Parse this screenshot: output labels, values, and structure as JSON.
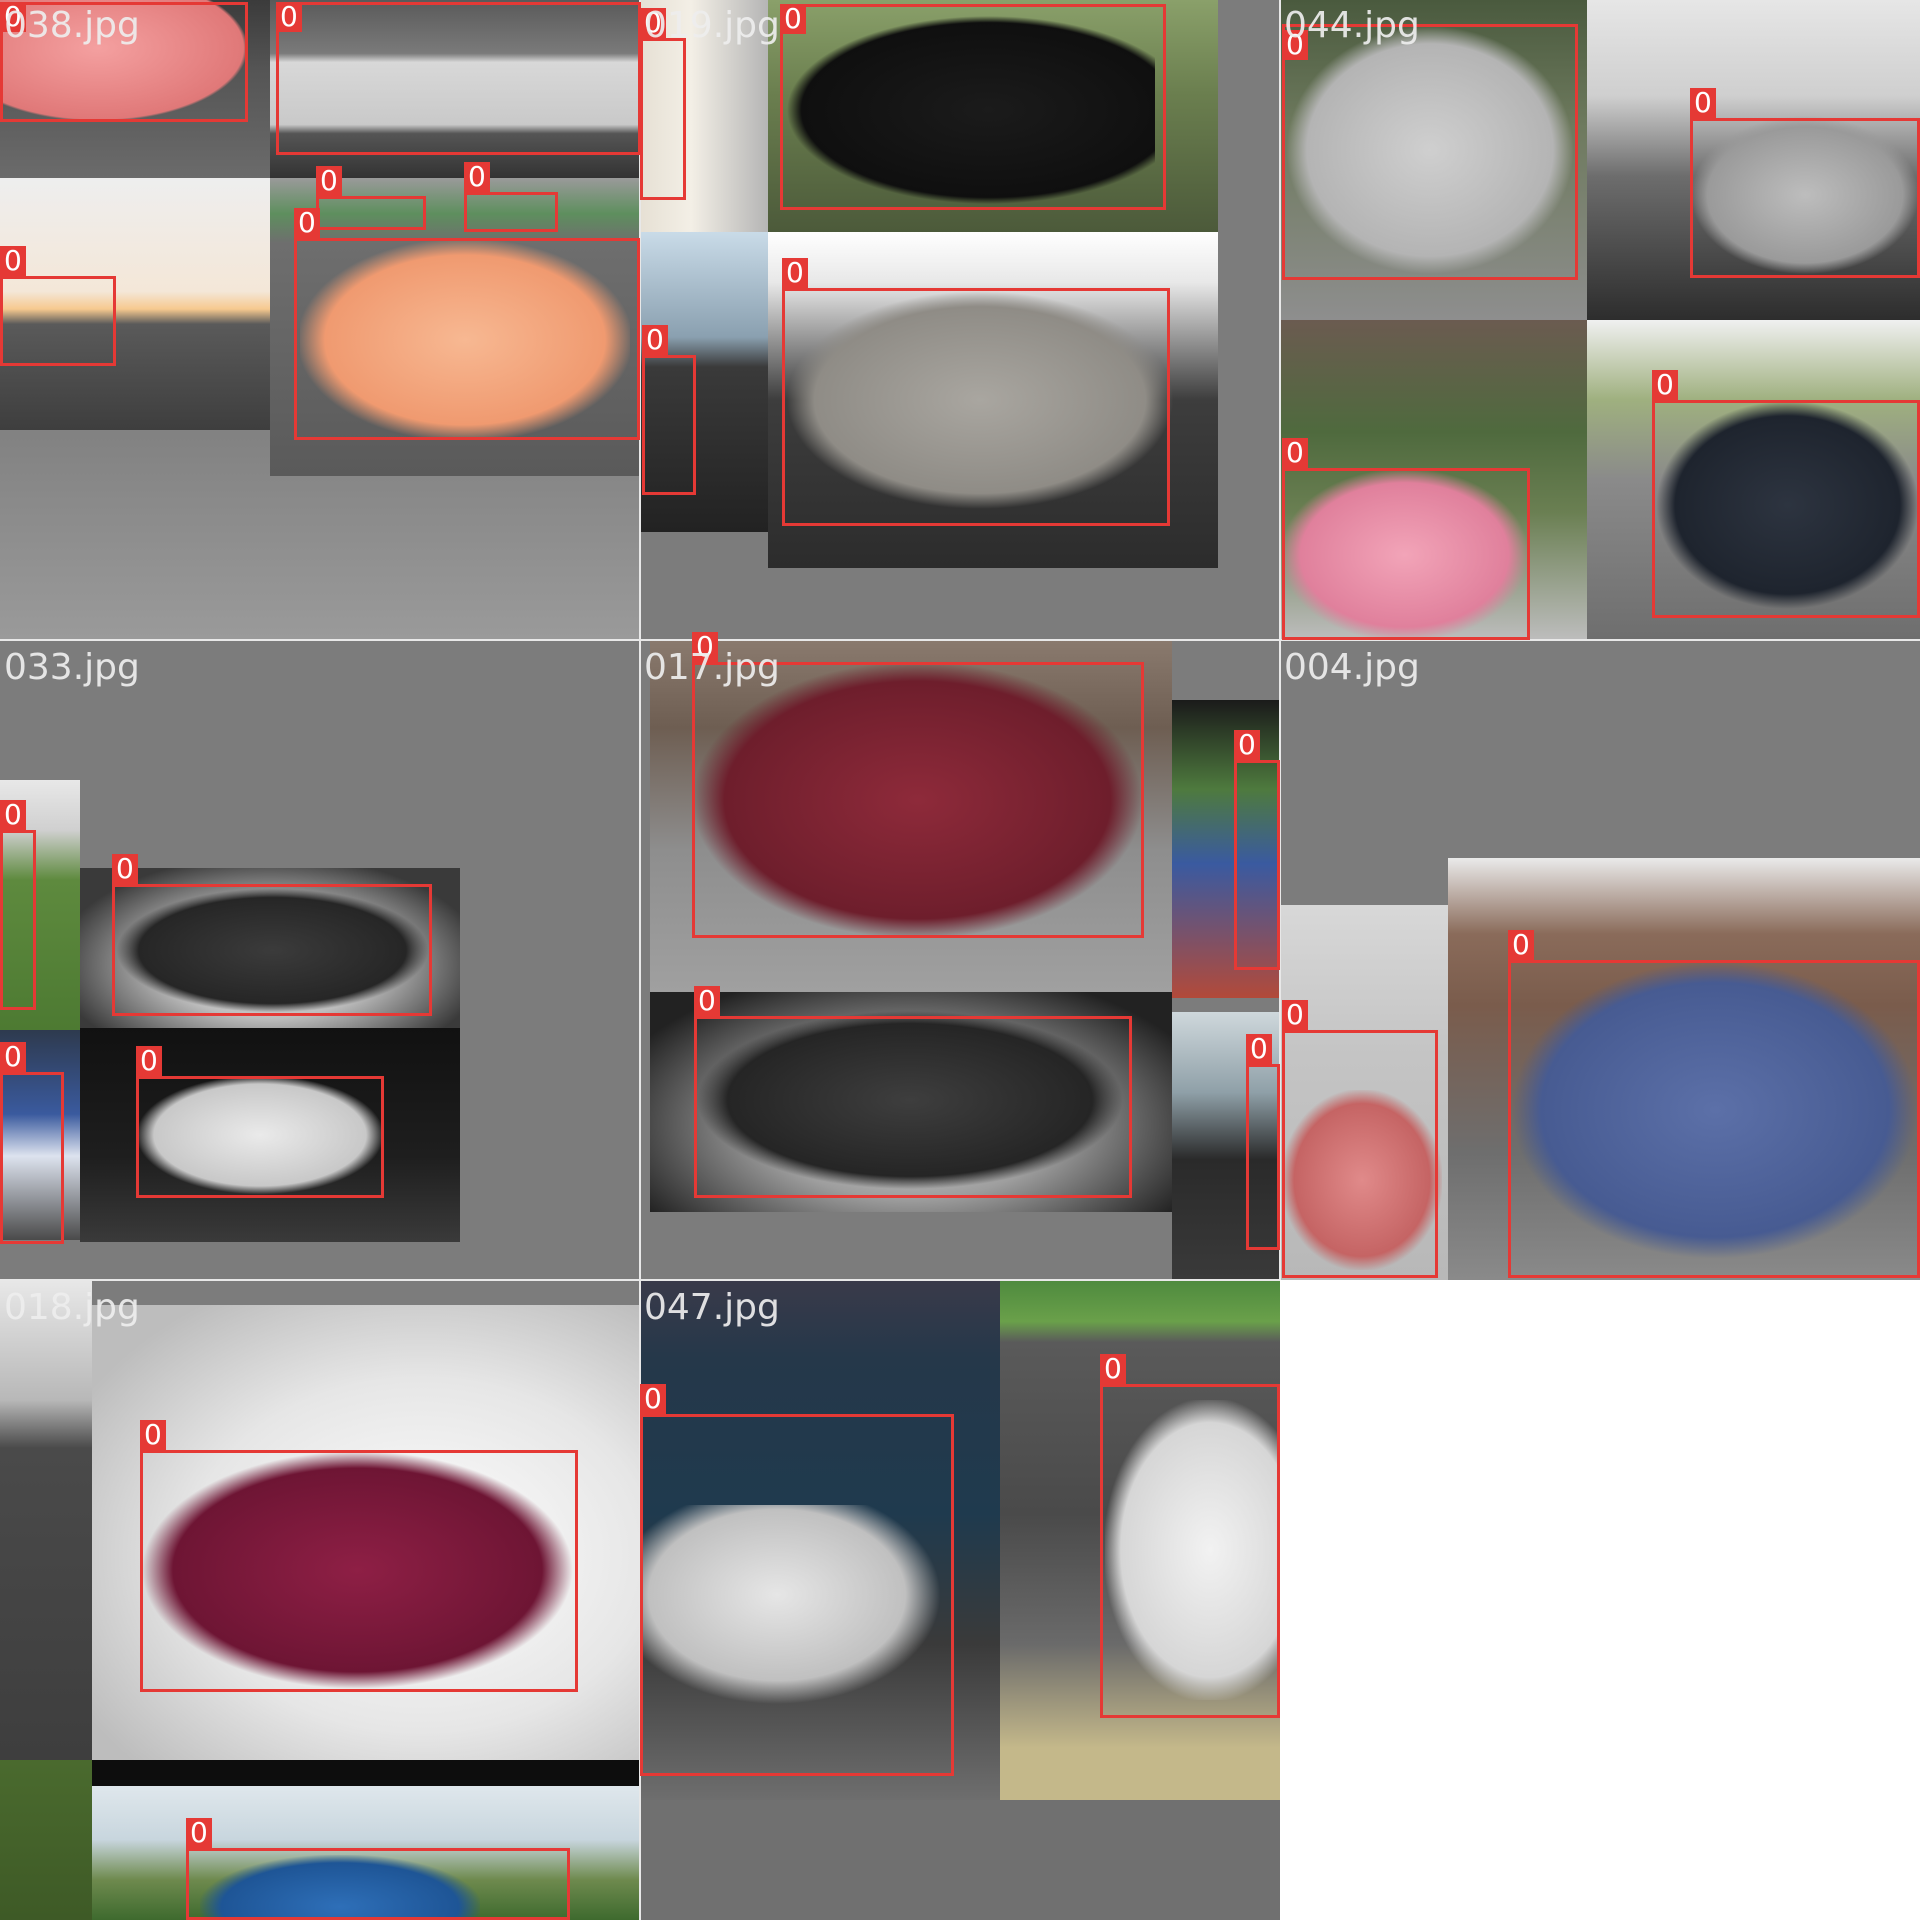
{
  "mosaic": {
    "background": "#ffffff",
    "tile_fill": "#7c7c7c",
    "box_color": "#e53935",
    "tiles": [
      {
        "filename": "038.jpg"
      },
      {
        "filename": "019.jpg"
      },
      {
        "filename": "044.jpg"
      },
      {
        "filename": "033.jpg"
      },
      {
        "filename": "017.jpg"
      },
      {
        "filename": "004.jpg"
      },
      {
        "filename": "018.jpg"
      },
      {
        "filename": "047.jpg"
      }
    ],
    "detections": [
      {
        "class": "0"
      },
      {
        "class": "0"
      },
      {
        "class": "0"
      },
      {
        "class": "0"
      },
      {
        "class": "0"
      },
      {
        "class": "0"
      },
      {
        "class": "0"
      },
      {
        "class": "0"
      },
      {
        "class": "0"
      },
      {
        "class": "0"
      },
      {
        "class": "0"
      },
      {
        "class": "0"
      },
      {
        "class": "0"
      },
      {
        "class": "0"
      },
      {
        "class": "0"
      },
      {
        "class": "0"
      },
      {
        "class": "0"
      },
      {
        "class": "0"
      },
      {
        "class": "0"
      },
      {
        "class": "0"
      },
      {
        "class": "0"
      },
      {
        "class": "0"
      },
      {
        "class": "0"
      },
      {
        "class": "0"
      },
      {
        "class": "0"
      },
      {
        "class": "0"
      },
      {
        "class": "0"
      }
    ]
  }
}
